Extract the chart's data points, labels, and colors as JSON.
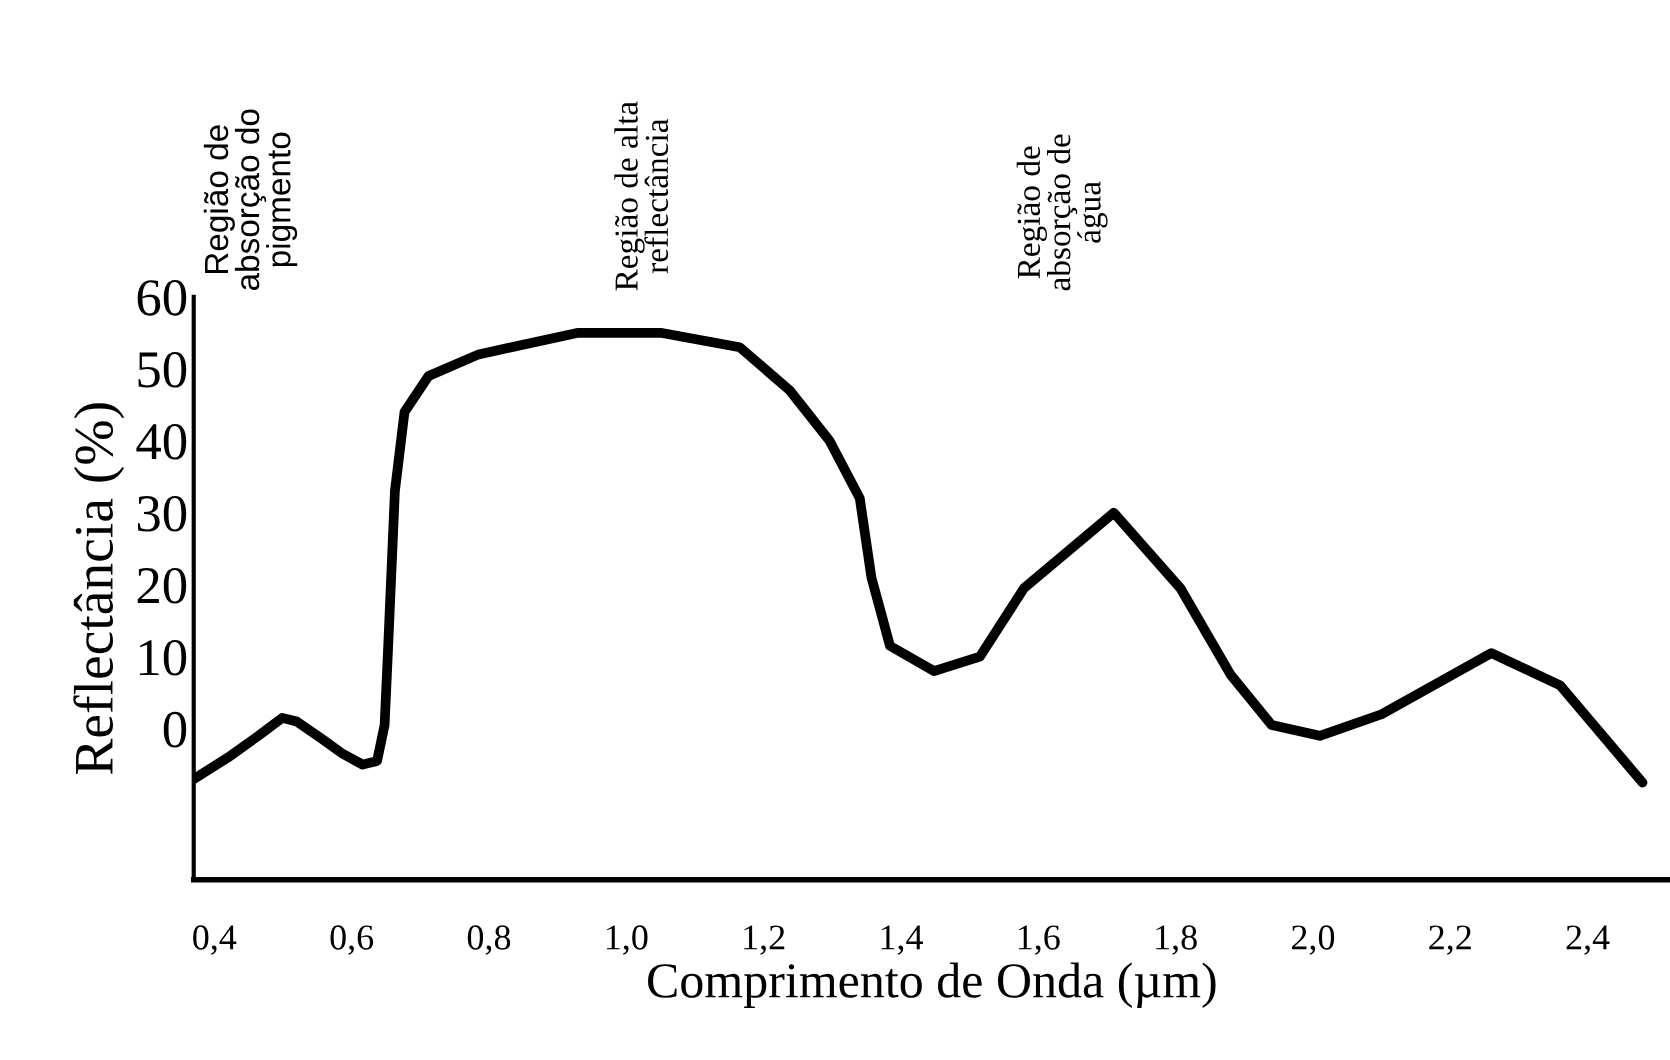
{
  "chart_data": {
    "type": "line",
    "xlabel": "Comprimento de Onda (µm)",
    "ylabel": "Reflectância (%)",
    "x": [
      0.37,
      0.42,
      0.464,
      0.499,
      0.52,
      0.558,
      0.587,
      0.616,
      0.637,
      0.648,
      0.653,
      0.663,
      0.677,
      0.712,
      0.785,
      0.93,
      1.05,
      1.165,
      1.238,
      1.296,
      1.34,
      1.357,
      1.384,
      1.448,
      1.515,
      1.579,
      1.71,
      1.807,
      1.88,
      1.94,
      2.01,
      2.1,
      2.26,
      2.36,
      2.48
    ],
    "series": [
      {
        "color": "#000000",
        "values": [
          -7,
          -4,
          -1,
          1.5,
          1,
          -1.5,
          -3.5,
          -5,
          -4.5,
          0.5,
          11,
          33,
          44,
          49,
          52,
          55,
          55,
          53,
          47,
          40,
          32,
          21,
          11.5,
          8,
          10,
          19.5,
          30,
          19.5,
          7.5,
          0.5,
          -1,
          2,
          10.5,
          6,
          -7.5
        ]
      }
    ],
    "xlim": [
      0.37,
      2.52
    ],
    "ylim": [
      -21,
      60
    ],
    "xticks": [
      {
        "value": 0.4,
        "label": "0,4"
      },
      {
        "value": 0.6,
        "label": "0,6"
      },
      {
        "value": 0.8,
        "label": "0,8"
      },
      {
        "value": 1.0,
        "label": "1,0"
      },
      {
        "value": 1.2,
        "label": "1,2"
      },
      {
        "value": 1.4,
        "label": "1,4"
      },
      {
        "value": 1.6,
        "label": "1,6"
      },
      {
        "value": 1.8,
        "label": "1,8"
      },
      {
        "value": 2.0,
        "label": "2,0"
      },
      {
        "value": 2.2,
        "label": "2,2"
      },
      {
        "value": 2.4,
        "label": "2,4"
      }
    ],
    "yticks": [
      0,
      10,
      20,
      30,
      40,
      50,
      60
    ],
    "grid": false,
    "legend": false,
    "marker": "none",
    "line_style": "solid",
    "annotations": [
      "Região de\nabsorção do\npigmento",
      "Região de alta\nreflectância",
      "Região de\nabsorção de\nágua"
    ]
  }
}
